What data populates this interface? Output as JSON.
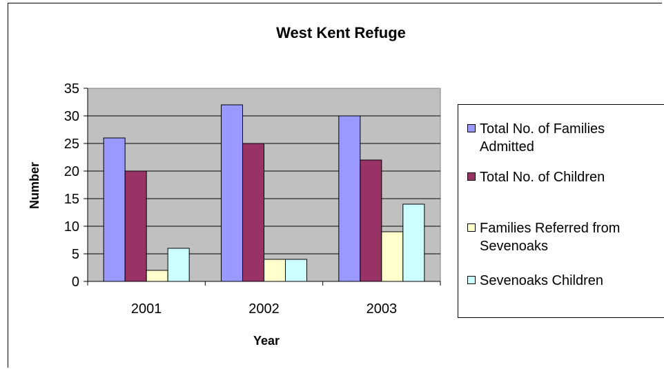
{
  "chart_data": {
    "type": "bar",
    "title": "West Kent Refuge",
    "xlabel": "Year",
    "ylabel": "Number",
    "categories": [
      "2001",
      "2002",
      "2003"
    ],
    "ylim": [
      0,
      35
    ],
    "yticks": [
      0,
      5,
      10,
      15,
      20,
      25,
      30,
      35
    ],
    "grid": true,
    "legend_position": "right",
    "plot_background": "#c0c0c0",
    "series": [
      {
        "name": "Total No. of Families\nAdmitted",
        "values": [
          26,
          32,
          30
        ],
        "color": "#9999ff"
      },
      {
        "name": "Total No. of Children",
        "values": [
          20,
          25,
          22
        ],
        "color": "#993366"
      },
      {
        "name": "Families Referred from\nSevenoaks",
        "values": [
          2,
          4,
          9
        ],
        "color": "#ffffcc"
      },
      {
        "name": "Sevenoaks Children",
        "values": [
          6,
          4,
          14
        ],
        "color": "#ccffff"
      }
    ]
  }
}
